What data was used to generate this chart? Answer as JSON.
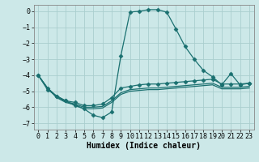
{
  "xlabel": "Humidex (Indice chaleur)",
  "bg_color": "#cce8e8",
  "grid_color": "#aacece",
  "line_color": "#1a7070",
  "xlim": [
    -0.5,
    23.5
  ],
  "ylim": [
    -7.4,
    0.4
  ],
  "yticks": [
    0,
    -1,
    -2,
    -3,
    -4,
    -5,
    -6,
    -7
  ],
  "xticks": [
    0,
    1,
    2,
    3,
    4,
    5,
    6,
    7,
    8,
    9,
    10,
    11,
    12,
    13,
    14,
    15,
    16,
    17,
    18,
    19,
    20,
    21,
    22,
    23
  ],
  "line1_x": [
    0,
    1,
    2,
    3,
    4,
    5,
    6,
    7,
    8,
    9,
    10,
    11,
    12,
    13,
    14,
    15,
    16,
    17,
    18,
    19,
    20,
    21,
    22,
    23
  ],
  "line1_y": [
    -4.0,
    -4.9,
    -5.3,
    -5.6,
    -5.9,
    -6.1,
    -6.5,
    -6.65,
    -6.3,
    -2.8,
    -0.05,
    0.0,
    0.1,
    0.1,
    -0.05,
    -1.1,
    -2.2,
    -3.0,
    -3.7,
    -4.1,
    -4.6,
    -3.9,
    -4.6,
    -4.5
  ],
  "line2_x": [
    0,
    1,
    2,
    3,
    4,
    5,
    6,
    7,
    8,
    9,
    10,
    11,
    12,
    13,
    14,
    15,
    16,
    17,
    18,
    19,
    20,
    21,
    22,
    23
  ],
  "line2_y": [
    -4.0,
    -4.8,
    -5.3,
    -5.6,
    -5.7,
    -5.9,
    -5.9,
    -5.8,
    -5.4,
    -4.8,
    -4.7,
    -4.6,
    -4.55,
    -4.55,
    -4.5,
    -4.45,
    -4.4,
    -4.35,
    -4.3,
    -4.25,
    -4.55,
    -4.55,
    -4.55,
    -4.5
  ],
  "line3_x": [
    0,
    1,
    2,
    3,
    4,
    5,
    6,
    7,
    8,
    9,
    10,
    11,
    12,
    13,
    14,
    15,
    16,
    17,
    18,
    19,
    20,
    21,
    22,
    23
  ],
  "line3_y": [
    -4.0,
    -4.8,
    -5.35,
    -5.65,
    -5.8,
    -6.0,
    -6.0,
    -5.95,
    -5.6,
    -5.1,
    -4.9,
    -4.85,
    -4.8,
    -4.8,
    -4.75,
    -4.7,
    -4.65,
    -4.6,
    -4.55,
    -4.5,
    -4.75,
    -4.75,
    -4.75,
    -4.7
  ],
  "line4_x": [
    0,
    1,
    2,
    3,
    4,
    5,
    6,
    7,
    8,
    9,
    10,
    11,
    12,
    13,
    14,
    15,
    16,
    17,
    18,
    19,
    20,
    21,
    22,
    23
  ],
  "line4_y": [
    -4.0,
    -4.8,
    -5.4,
    -5.7,
    -5.85,
    -6.1,
    -6.1,
    -6.05,
    -5.7,
    -5.2,
    -5.0,
    -4.95,
    -4.9,
    -4.9,
    -4.85,
    -4.8,
    -4.75,
    -4.7,
    -4.65,
    -4.6,
    -4.85,
    -4.85,
    -4.85,
    -4.8
  ]
}
